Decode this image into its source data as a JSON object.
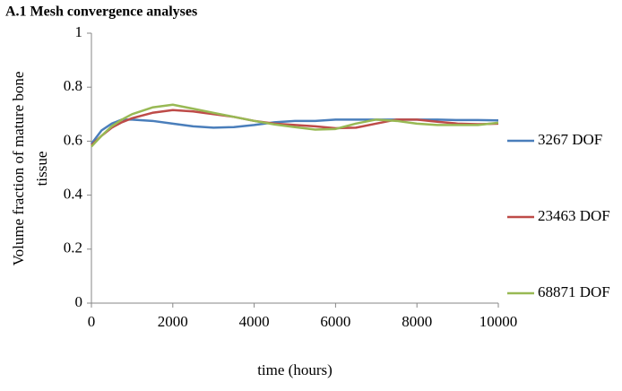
{
  "chart_data": {
    "type": "line",
    "title": "A.1 Mesh convergence analyses",
    "xlabel": "time (hours)",
    "ylabel": [
      "Volume fraction of mature bone",
      "tissue"
    ],
    "x": [
      0,
      250,
      500,
      750,
      1000,
      1500,
      2000,
      2500,
      3000,
      3500,
      4000,
      4500,
      5000,
      5500,
      6000,
      6500,
      7000,
      7500,
      8000,
      8500,
      9000,
      9500,
      10000
    ],
    "series": [
      {
        "name": "3267 DOF",
        "color": "#4a7ebb",
        "values": [
          0.59,
          0.64,
          0.665,
          0.68,
          0.68,
          0.675,
          0.665,
          0.655,
          0.65,
          0.652,
          0.66,
          0.67,
          0.675,
          0.675,
          0.68,
          0.68,
          0.68,
          0.68,
          0.68,
          0.68,
          0.678,
          0.678,
          0.677
        ]
      },
      {
        "name": "23463 DOF",
        "color": "#be4b48",
        "values": [
          0.585,
          0.62,
          0.65,
          0.67,
          0.685,
          0.705,
          0.715,
          0.71,
          0.7,
          0.69,
          0.675,
          0.665,
          0.66,
          0.655,
          0.648,
          0.65,
          0.665,
          0.68,
          0.68,
          0.672,
          0.665,
          0.663,
          0.665
        ]
      },
      {
        "name": "68871 DOF",
        "color": "#98b954",
        "values": [
          0.58,
          0.62,
          0.655,
          0.68,
          0.7,
          0.725,
          0.735,
          0.72,
          0.705,
          0.69,
          0.675,
          0.662,
          0.652,
          0.643,
          0.645,
          0.665,
          0.68,
          0.675,
          0.665,
          0.66,
          0.66,
          0.66,
          0.668
        ]
      }
    ],
    "xlim": [
      0,
      10000
    ],
    "xticks": [
      0,
      2000,
      4000,
      6000,
      8000,
      10000
    ],
    "ylim": [
      0,
      1
    ],
    "yticks": [
      0,
      0.2,
      0.4,
      0.6,
      0.8,
      1
    ],
    "grid": false,
    "legend": "right"
  }
}
